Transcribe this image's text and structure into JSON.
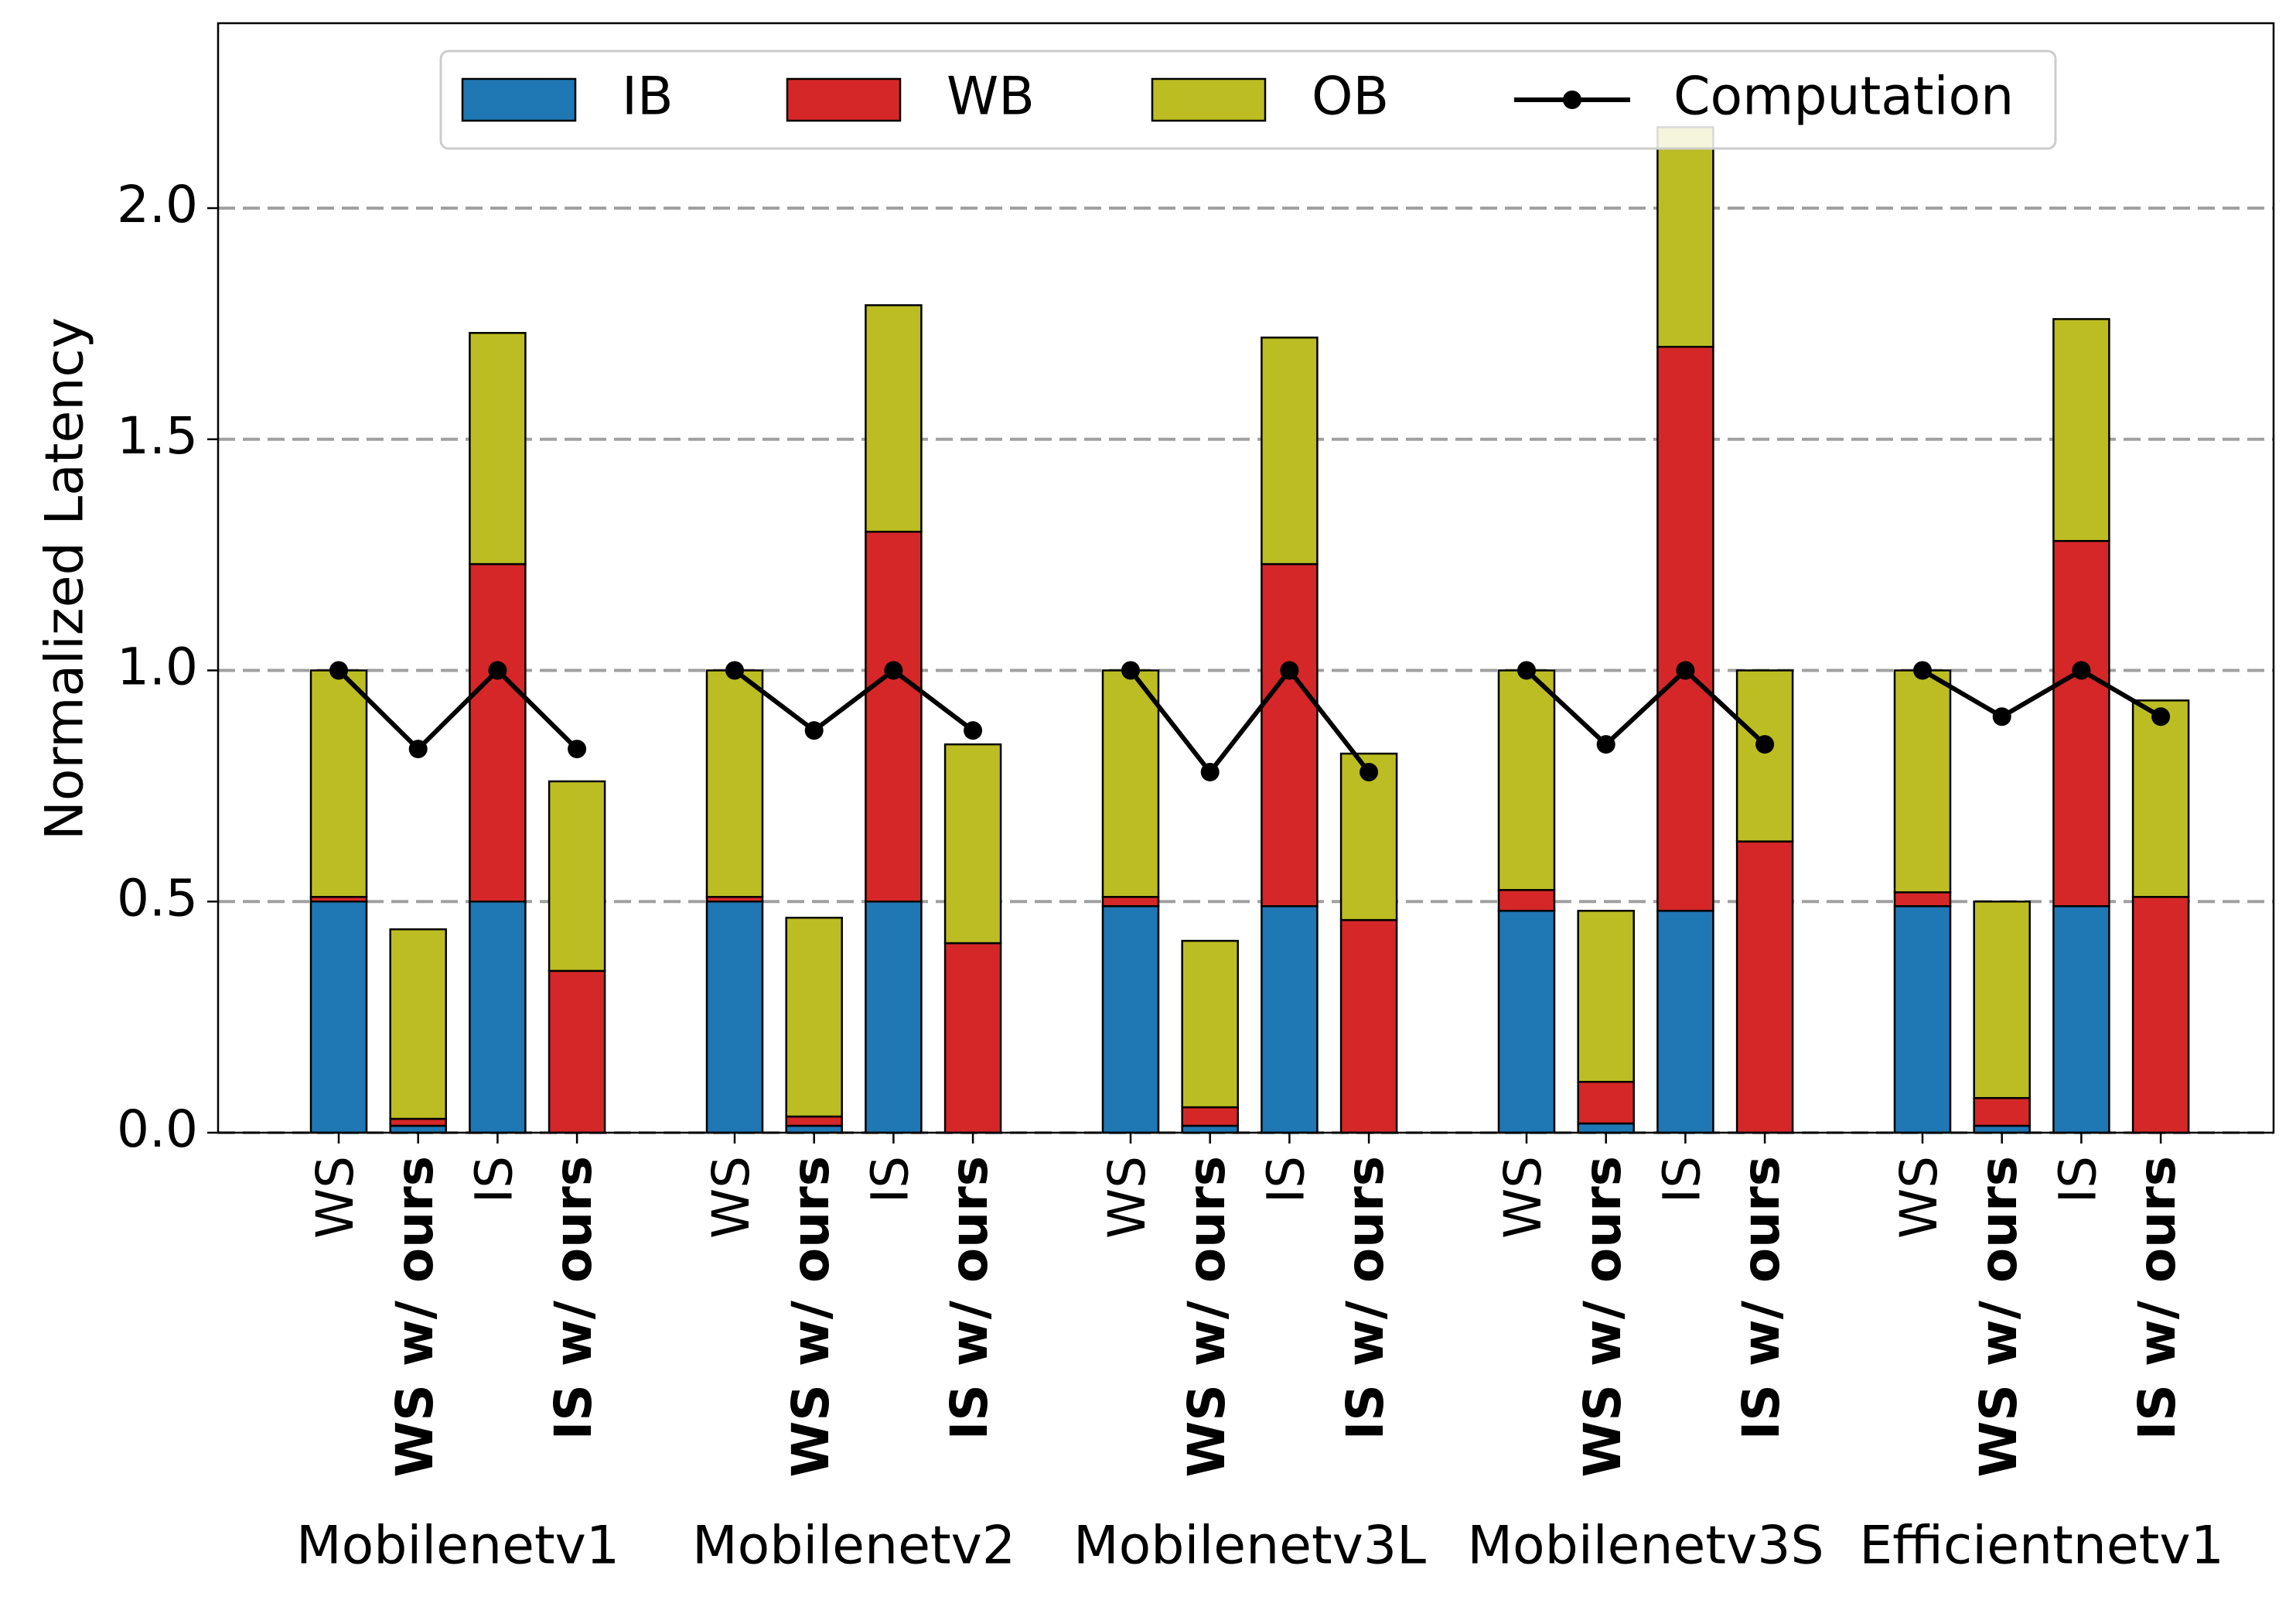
{
  "chart_data": {
    "type": "bar",
    "stacked": true,
    "ylabel": "Normalized Latency",
    "xlabel": "",
    "ylim": [
      0,
      2.4
    ],
    "yticks": [
      0.0,
      0.5,
      1.0,
      1.5,
      2.0
    ],
    "ytick_labels": [
      "0.0",
      "0.5",
      "1.0",
      "1.5",
      "2.0"
    ],
    "grid": "horizontal-dashed",
    "legend_position": "top-center",
    "colors": {
      "IB": "#1f77b4",
      "WB": "#d62728",
      "OB": "#bcbd22",
      "Computation": "#000000"
    },
    "legend": [
      {
        "name": "IB",
        "kind": "bar",
        "color": "#1f77b4"
      },
      {
        "name": "WB",
        "kind": "bar",
        "color": "#d62728"
      },
      {
        "name": "OB",
        "kind": "bar",
        "color": "#bcbd22"
      },
      {
        "name": "Computation",
        "kind": "line",
        "color": "#000000"
      }
    ],
    "bar_labels": [
      "WS",
      "WS w/ ours",
      "IS",
      "IS w/ ours"
    ],
    "bar_label_bold": [
      false,
      true,
      false,
      true
    ],
    "groups": [
      {
        "name": "Mobilenetv1",
        "IB": [
          0.5,
          0.015,
          0.5,
          0.0
        ],
        "WB": [
          0.01,
          0.015,
          0.73,
          0.35
        ],
        "OB": [
          0.49,
          0.41,
          0.5,
          0.41
        ],
        "Computation": [
          1.0,
          0.83,
          1.0,
          0.83
        ]
      },
      {
        "name": "Mobilenetv2",
        "IB": [
          0.5,
          0.015,
          0.5,
          0.0
        ],
        "WB": [
          0.01,
          0.02,
          0.8,
          0.41
        ],
        "OB": [
          0.49,
          0.43,
          0.49,
          0.43
        ],
        "Computation": [
          1.0,
          0.87,
          1.0,
          0.87
        ]
      },
      {
        "name": "Mobilenetv3L",
        "IB": [
          0.49,
          0.015,
          0.49,
          0.0
        ],
        "WB": [
          0.02,
          0.04,
          0.74,
          0.46
        ],
        "OB": [
          0.49,
          0.36,
          0.49,
          0.36
        ],
        "Computation": [
          1.0,
          0.78,
          1.0,
          0.78
        ]
      },
      {
        "name": "Mobilenetv3S",
        "IB": [
          0.48,
          0.02,
          0.48,
          0.0
        ],
        "WB": [
          0.045,
          0.09,
          1.22,
          0.63
        ],
        "OB": [
          0.475,
          0.37,
          0.475,
          0.37
        ],
        "Computation": [
          1.0,
          0.84,
          1.0,
          0.84
        ]
      },
      {
        "name": "Efficientnetv1",
        "IB": [
          0.49,
          0.015,
          0.49,
          0.0
        ],
        "WB": [
          0.03,
          0.06,
          0.79,
          0.51
        ],
        "OB": [
          0.48,
          0.425,
          0.48,
          0.425
        ],
        "Computation": [
          1.0,
          0.9,
          1.0,
          0.9
        ]
      }
    ]
  }
}
